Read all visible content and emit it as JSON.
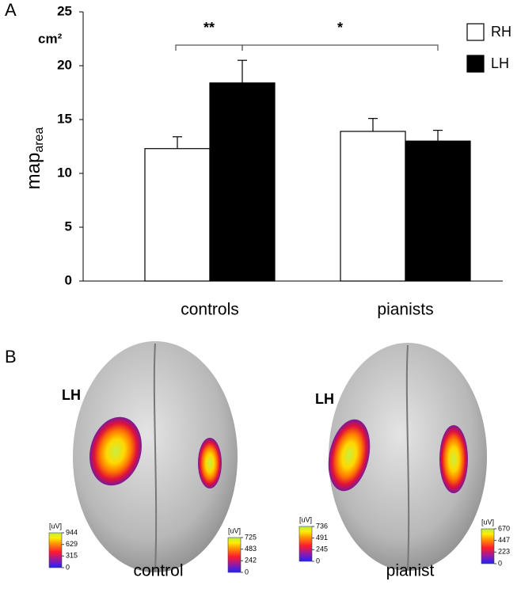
{
  "panels": [
    "A",
    "B"
  ],
  "chart_data": {
    "type": "bar",
    "y_unit": "cm²",
    "ylabel": "map",
    "ylabel_subscript": "area",
    "categories": [
      "controls",
      "pianists"
    ],
    "series": [
      {
        "name": "RH",
        "color": "#ffffff",
        "values": [
          12.3,
          13.9
        ],
        "errors": [
          1.1,
          1.2
        ]
      },
      {
        "name": "LH",
        "color": "#000000",
        "values": [
          18.4,
          13.0
        ],
        "errors": [
          2.1,
          1.0
        ]
      }
    ],
    "ylim": [
      0,
      25
    ],
    "yticks": [
      0,
      5,
      10,
      15,
      20,
      25
    ],
    "significance": [
      {
        "label": "**"
      },
      {
        "label": "*"
      }
    ]
  },
  "brain_maps": [
    {
      "hemisphere_label": "LH",
      "caption": "control",
      "colorbars": [
        {
          "unit": "[uV]",
          "ticks": [
            944,
            629,
            315,
            0
          ]
        },
        {
          "unit": "[uV]",
          "ticks": [
            725,
            483,
            242,
            0
          ]
        }
      ]
    },
    {
      "hemisphere_label": "LH",
      "caption": "pianist",
      "colorbars": [
        {
          "unit": "[uV]",
          "ticks": [
            736,
            491,
            245,
            0
          ]
        },
        {
          "unit": "[uV]",
          "ticks": [
            670,
            447,
            223,
            0
          ]
        }
      ]
    }
  ]
}
